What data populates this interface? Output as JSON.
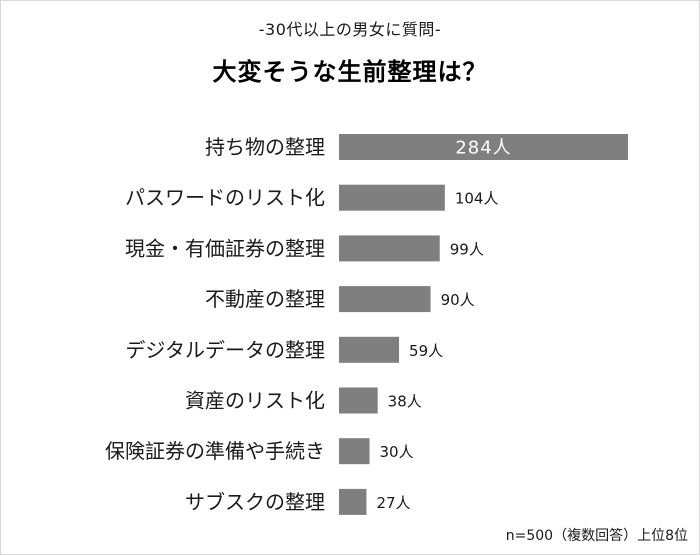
{
  "header": {
    "subtitle": "-30代以上の男女に質問-",
    "title": "大変そうな生前整理は？"
  },
  "footnote": "n=500（複数回答）上位8位",
  "colors": {
    "bar": "#7f7f7f",
    "inside_label": "#ffffff",
    "text": "#1a1a1a"
  },
  "chart_data": {
    "type": "bar",
    "orientation": "horizontal",
    "title": "大変そうな生前整理は？",
    "subtitle": "-30代以上の男女に質問-",
    "categories": [
      "持ち物の整理",
      "パスワードのリスト化",
      "現金・有価証券の整理",
      "不動産の整理",
      "デジタルデータの整理",
      "資産のリスト化",
      "保険証券の準備や手続き",
      "サブスクの整理"
    ],
    "values": [
      284,
      104,
      99,
      90,
      59,
      38,
      30,
      27
    ],
    "value_labels": [
      "284人",
      "104人",
      "99人",
      "90人",
      "59人",
      "38人",
      "30人",
      "27人"
    ],
    "unit": "人",
    "xlim": [
      0,
      284
    ],
    "grid": false,
    "note": "n=500（複数回答）上位8位"
  }
}
